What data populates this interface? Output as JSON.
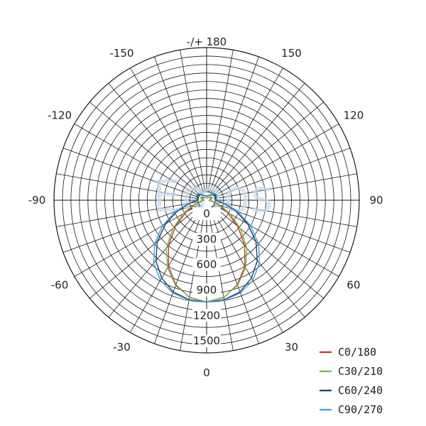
{
  "watermark": "Emos",
  "chart_data": {
    "type": "polar-line",
    "title": "",
    "units": "",
    "radial_ticks": [
      0,
      300,
      600,
      900,
      1200,
      1500
    ],
    "rlim": [
      0,
      1800
    ],
    "angle_labels": [
      {
        "deg": 0,
        "text": "0"
      },
      {
        "deg": 30,
        "text": "30"
      },
      {
        "deg": 60,
        "text": "60"
      },
      {
        "deg": 90,
        "text": "90"
      },
      {
        "deg": 120,
        "text": "120"
      },
      {
        "deg": 150,
        "text": "150"
      },
      {
        "deg": 180,
        "text": "-/+ 180"
      },
      {
        "deg": -150,
        "text": "-150"
      },
      {
        "deg": -120,
        "text": "-120"
      },
      {
        "deg": -90,
        "text": "-90"
      },
      {
        "deg": -60,
        "text": "-60"
      },
      {
        "deg": -30,
        "text": "-30"
      }
    ],
    "angle_grid_step": 10,
    "legend_position": "bottom-right",
    "series": [
      {
        "name": "C0/180",
        "color": "#c0392b",
        "angles": [
          0,
          10,
          20,
          30,
          40,
          50,
          60,
          70,
          80,
          90,
          100,
          110,
          120,
          130,
          140,
          150,
          160,
          170,
          180
        ],
        "values": [
          1200,
          1165,
          1060,
          900,
          700,
          480,
          280,
          140,
          60,
          30,
          40,
          55,
          60,
          50,
          40,
          35,
          30,
          28,
          25
        ]
      },
      {
        "name": "C30/210",
        "color": "#7ab648",
        "angles": [
          0,
          10,
          20,
          30,
          40,
          50,
          60,
          70,
          80,
          90,
          100,
          110,
          120,
          130,
          140,
          150,
          160,
          170,
          180
        ],
        "values": [
          1200,
          1160,
          1070,
          920,
          740,
          520,
          320,
          170,
          80,
          40,
          50,
          70,
          75,
          60,
          45,
          38,
          32,
          28,
          25
        ]
      },
      {
        "name": "C60/240",
        "color": "#1f3f6e",
        "angles": [
          0,
          10,
          20,
          30,
          40,
          50,
          60,
          70,
          80,
          90,
          100,
          110,
          120,
          130,
          140,
          150,
          160,
          170,
          180
        ],
        "values": [
          1200,
          1190,
          1150,
          1060,
          930,
          760,
          560,
          360,
          200,
          110,
          100,
          115,
          120,
          105,
          80,
          65,
          55,
          50,
          45
        ]
      },
      {
        "name": "C90/270",
        "color": "#3aa0d8",
        "angles": [
          0,
          10,
          20,
          30,
          40,
          50,
          60,
          70,
          80,
          90,
          100,
          110,
          120,
          130,
          140,
          150,
          160,
          170,
          180
        ],
        "values": [
          1200,
          1195,
          1165,
          1090,
          970,
          800,
          600,
          390,
          220,
          130,
          115,
          130,
          135,
          120,
          90,
          72,
          60,
          55,
          50
        ]
      }
    ]
  }
}
